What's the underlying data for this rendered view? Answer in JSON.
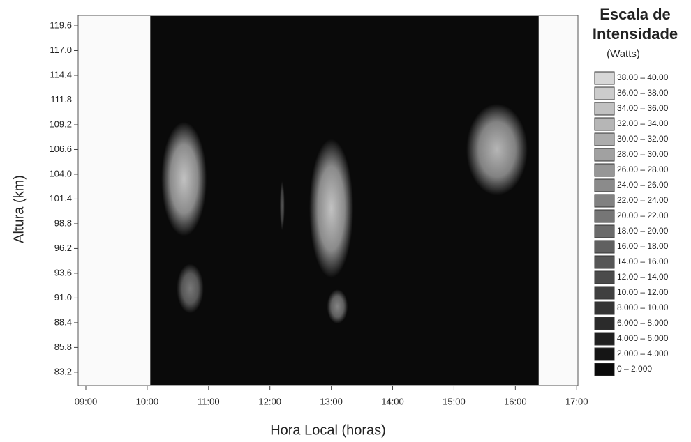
{
  "chart_data": {
    "type": "heatmap",
    "x_label": "Hora Local (horas)",
    "y_label": "Altura (km)",
    "legend_title": [
      "Escala de",
      "Intensidade"
    ],
    "legend_unit": "(Watts)",
    "xlim": [
      8.875,
      17.02
    ],
    "ylim": [
      81.8,
      120.7
    ],
    "xticks": [
      {
        "value": 9,
        "label": "09:00"
      },
      {
        "value": 10,
        "label": "10:00"
      },
      {
        "value": 11,
        "label": "11:00"
      },
      {
        "value": 12,
        "label": "12:00"
      },
      {
        "value": 13,
        "label": "13:00"
      },
      {
        "value": 14,
        "label": "14:00"
      },
      {
        "value": 15,
        "label": "15:00"
      },
      {
        "value": 16,
        "label": "16:00"
      },
      {
        "value": 17,
        "label": "17:00"
      }
    ],
    "yticks": [
      119.6,
      {
        "value": 117,
        "label": "117.0"
      },
      114.4,
      111.8,
      109.2,
      106.6,
      {
        "value": 104,
        "label": "104.0"
      },
      101.4,
      98.8,
      96.2,
      93.6,
      {
        "value": 91,
        "label": "91.0"
      },
      88.4,
      85.8,
      83.2
    ],
    "observed_x": [
      10.05,
      16.38
    ],
    "observed_intensity": 1,
    "cells": [
      {
        "x": 10.6,
        "y": 103.5,
        "rx": 0.37,
        "ry": 6,
        "intensity": 30
      },
      {
        "x": 10.7,
        "y": 92,
        "rx": 0.22,
        "ry": 2.6,
        "intensity": 18
      },
      {
        "x": 12.2,
        "y": 100.7,
        "rx": 0.04,
        "ry": 2.6,
        "intensity": 12
      },
      {
        "x": 13.0,
        "y": 100.4,
        "rx": 0.36,
        "ry": 7.3,
        "intensity": 30
      },
      {
        "x": 13.1,
        "y": 90.1,
        "rx": 0.17,
        "ry": 1.8,
        "intensity": 20
      },
      {
        "x": 15.7,
        "y": 106.6,
        "rx": 0.5,
        "ry": 4.8,
        "intensity": 28
      }
    ],
    "levels": [
      "38.00 – 40.00",
      "36.00 – 38.00",
      "34.00 – 36.00",
      "32.00 – 34.00",
      "30.00 – 32.00",
      "28.00 – 30.00",
      "26.00 – 28.00",
      "24.00 – 26.00",
      "22.00 – 24.00",
      "20.00 – 22.00",
      "18.00 – 20.00",
      "16.00 – 18.00",
      "14.00 – 16.00",
      "12.00 – 14.00",
      "10.00 – 12.00",
      "8.000 – 10.00",
      "6.000 – 8.000",
      "4.000 – 6.000",
      "2.000 – 4.000",
      "0 – 2.000"
    ]
  }
}
